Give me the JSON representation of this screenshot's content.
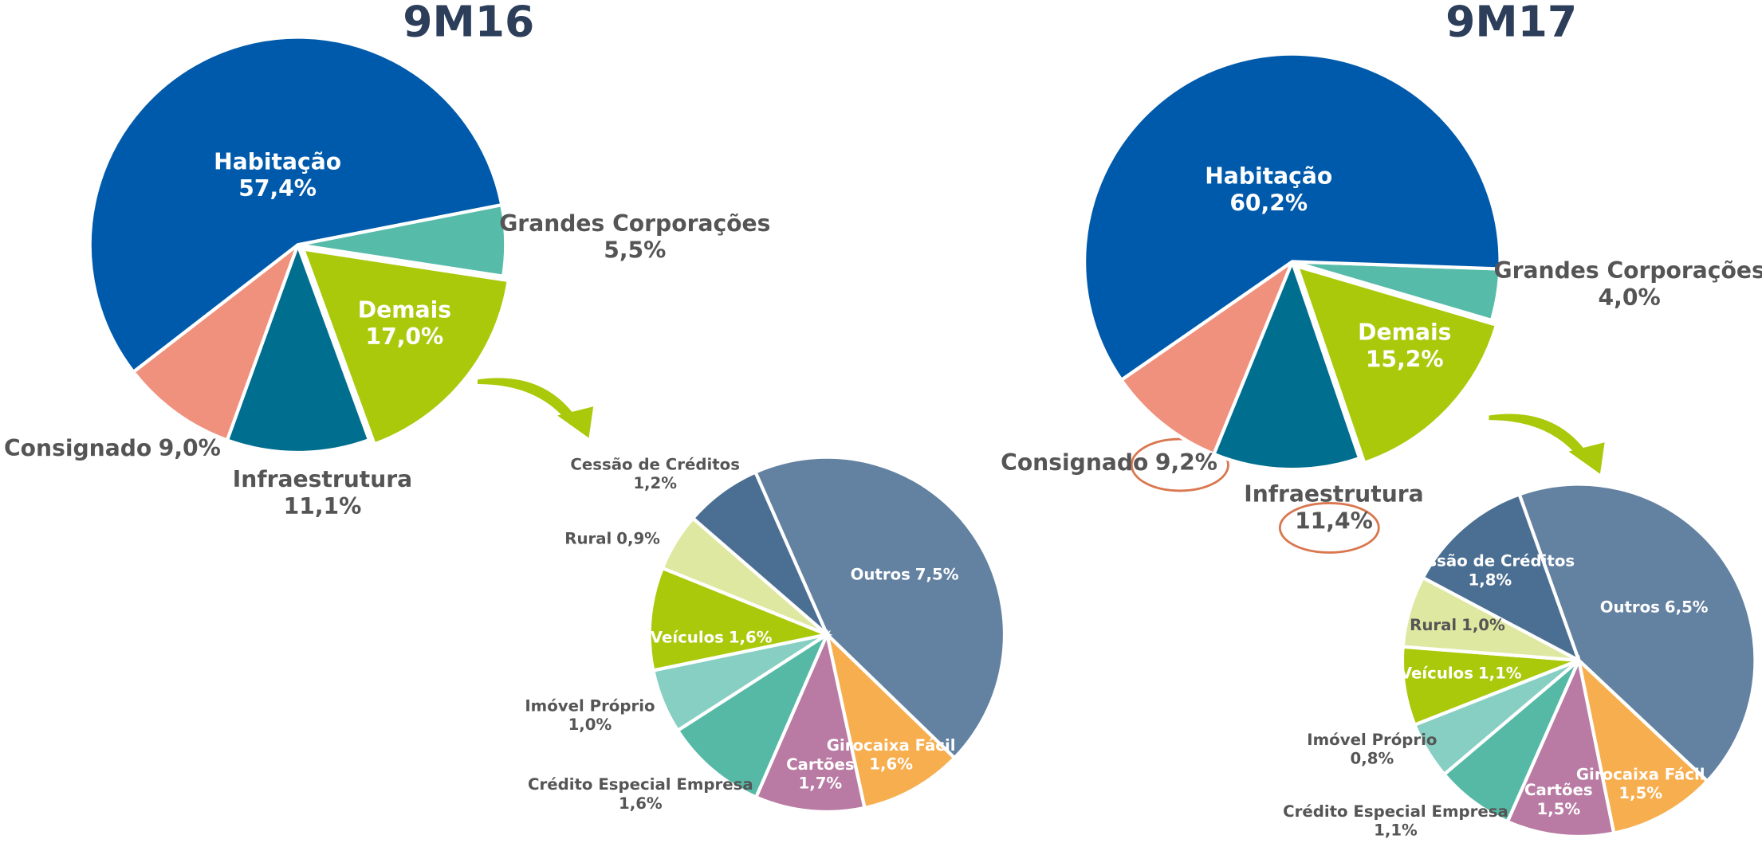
{
  "chart_data": [
    {
      "type": "pie",
      "title": "9M16",
      "categories": [
        "Grandes Corporações",
        "Demais",
        "Infraestrutura",
        "Consignado",
        "Habitação"
      ],
      "values": [
        5.5,
        17.0,
        11.1,
        9.0,
        57.4
      ],
      "value_labels": [
        "5,5%",
        "17,0%",
        "11,1%",
        "9,0%",
        "57,4%"
      ],
      "colors": [
        "#56bba9",
        "#aac90a",
        "#006e8f",
        "#f0917e",
        "#005aab"
      ]
    },
    {
      "type": "pie",
      "title": "9M17",
      "categories": [
        "Grandes Corporações",
        "Demais",
        "Infraestrutura",
        "Consignado",
        "Habitação"
      ],
      "values": [
        4.0,
        15.2,
        11.4,
        9.2,
        60.2
      ],
      "value_labels": [
        "4,0%",
        "15,2%",
        "11,4%",
        "9,2%",
        "60,2%"
      ],
      "colors": [
        "#56bba9",
        "#aac90a",
        "#006e8f",
        "#f0917e",
        "#005aab"
      ]
    },
    {
      "type": "pie",
      "categories": [
        "Outros",
        "Girocaixa Fácil",
        "Cartões",
        "Crédito Especial Empresa",
        "Imóvel Próprio",
        "Veículos",
        "Rural",
        "Cessão de Créditos"
      ],
      "values": [
        7.5,
        1.6,
        1.7,
        1.6,
        1.0,
        1.6,
        0.9,
        1.2
      ],
      "value_labels": [
        "7,5%",
        "1,6%",
        "1,7%",
        "1,6%",
        "1,0%",
        "1,6%",
        "0,9%",
        "1,2%"
      ],
      "colors": [
        "#6381a0",
        "#f7ae4f",
        "#b97ba3",
        "#55b9a6",
        "#86cfc2",
        "#aac90a",
        "#dfe8a0",
        "#4b6f92"
      ]
    },
    {
      "type": "pie",
      "categories": [
        "Outros",
        "Girocaixa Fácil",
        "Cartões",
        "Crédito Especial Empresa",
        "Imóvel Próprio",
        "Veículos",
        "Rural",
        "Cessão de Créditos"
      ],
      "values": [
        6.5,
        1.5,
        1.5,
        1.1,
        0.8,
        1.1,
        1.0,
        1.8
      ],
      "value_labels": [
        "6,5%",
        "1,5%",
        "1,5%",
        "1,1%",
        "0,8%",
        "1,1%",
        "1,0%",
        "1,8%"
      ],
      "colors": [
        "#6381a0",
        "#f7ae4f",
        "#b97ba3",
        "#55b9a6",
        "#86cfc2",
        "#aac90a",
        "#dfe8a0",
        "#4b6f92"
      ]
    }
  ]
}
